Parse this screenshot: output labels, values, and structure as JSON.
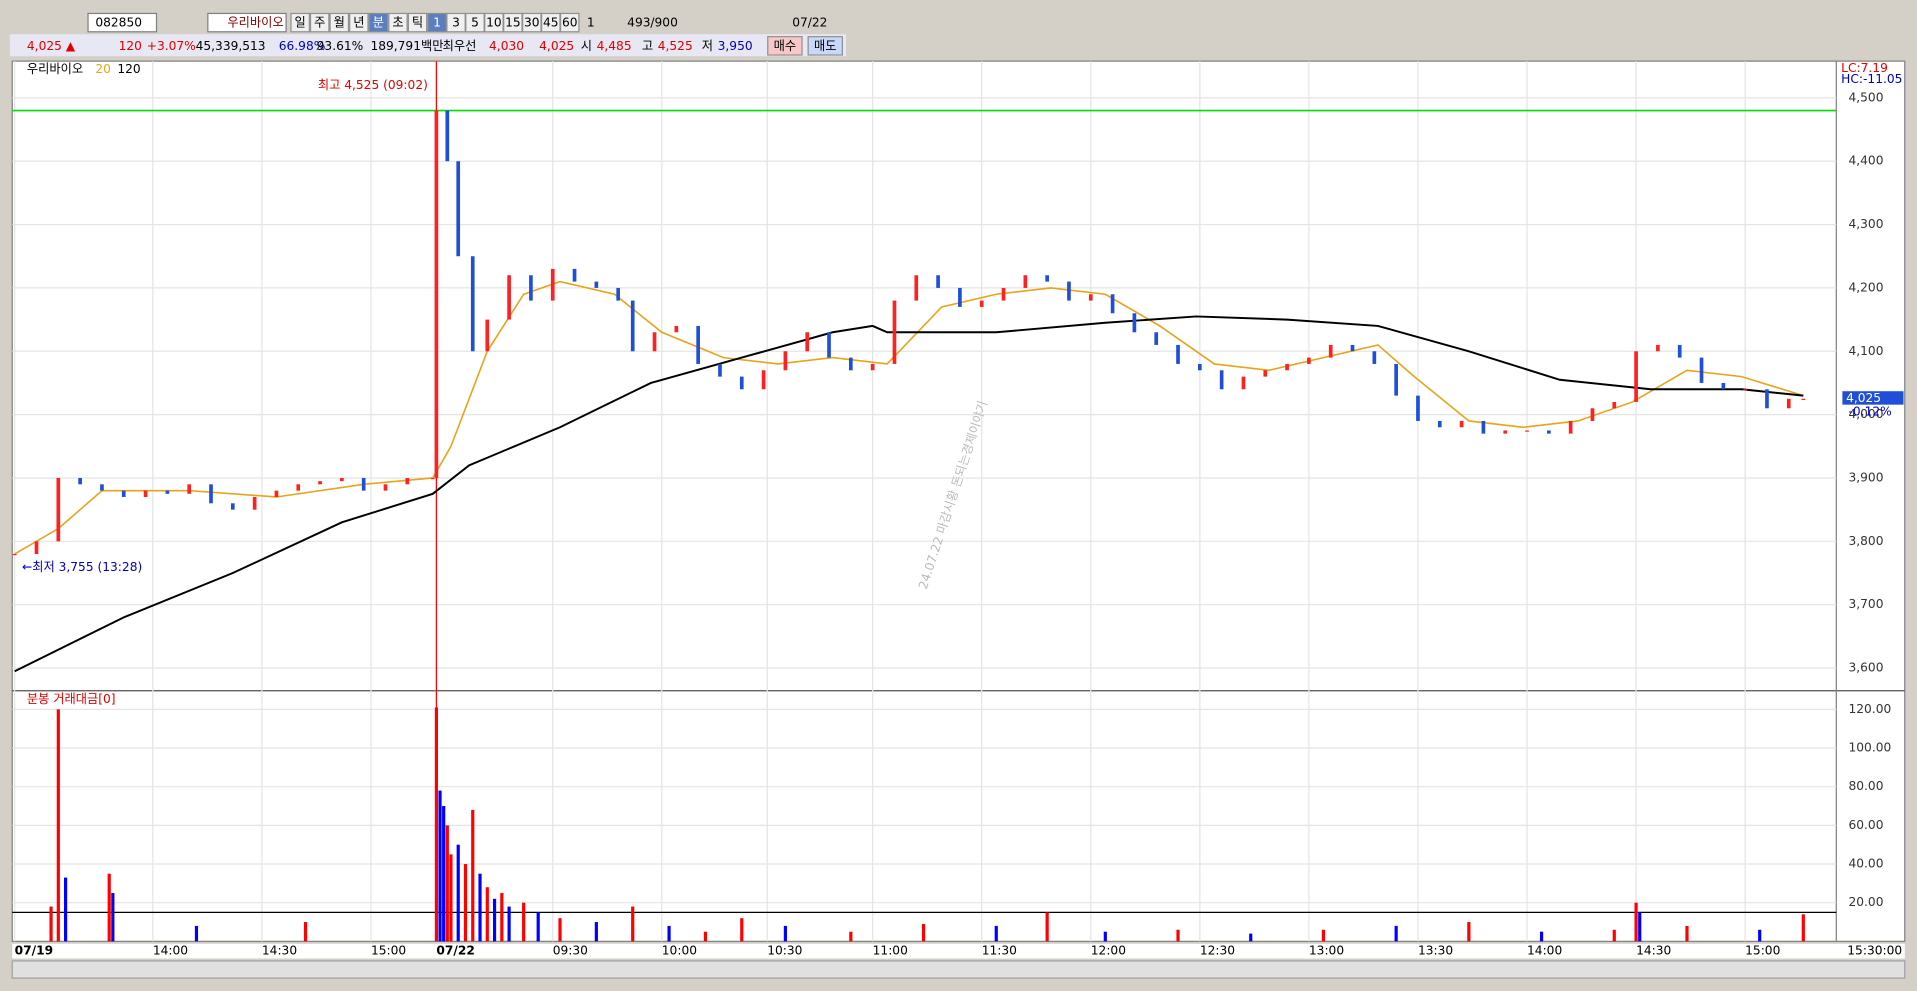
{
  "toolbar": {
    "code": "082850",
    "name": "우리바이오",
    "periods": [
      "일",
      "주",
      "월",
      "년",
      "분",
      "초",
      "틱"
    ],
    "minutes": [
      "1",
      "3",
      "5",
      "10",
      "15",
      "30",
      "45",
      "60"
    ],
    "count": "1",
    "bars": "493",
    "max": "/900",
    "date": "07/22"
  },
  "quote": {
    "price": "4,025 ▲",
    "change": "120",
    "rate": "+3.07%",
    "volume": "45,339,513",
    "ratio1": "66.98%",
    "ratio2": "93.61%",
    "amount": "189,791백만",
    "best_label": "최우선",
    "ask": "4,030",
    "bid": "4,025",
    "open_label": "시",
    "open": "4,485",
    "high_label": "고",
    "high": "4,525",
    "low_label": "저",
    "low": "3,950",
    "buy": "매수",
    "sell": "매도"
  },
  "chart_data": [
    {
      "type": "candle",
      "legend": [
        "우리바이오",
        "20",
        "120"
      ],
      "high_note": "최고 4,525 (09:02)",
      "low_note": "←최저 3,755 (13:28)",
      "lc": "LC:7.19",
      "hc": "HC:-11.05",
      "last": "4,025",
      "last_rate": "-0.12%",
      "watermark": "24.07.22 마감시황 돈되는경제이야기",
      "day_high": 4480,
      "xlim": [
        0,
        493
      ],
      "ylim": [
        3568,
        4558
      ],
      "yticks": [
        {
          "value": 4500,
          "label": "4,500"
        },
        {
          "value": 4400,
          "label": "4,400"
        },
        {
          "value": 4300,
          "label": "4,300"
        },
        {
          "value": 4200,
          "label": "4,200"
        },
        {
          "value": 4100,
          "label": "4,100"
        },
        {
          "value": 4000,
          "label": "4,000"
        },
        {
          "value": 3900,
          "label": "3,900"
        },
        {
          "value": 3800,
          "label": "3,800"
        },
        {
          "value": 3700,
          "label": "3,700"
        },
        {
          "value": 3600,
          "label": "3,600"
        }
      ],
      "xticks": [
        {
          "value": 0,
          "label": "07/19"
        },
        {
          "value": 38,
          "label": "14:00"
        },
        {
          "value": 68,
          "label": "14:30"
        },
        {
          "value": 98,
          "label": "15:00"
        },
        {
          "value": 116,
          "label": "07/22"
        },
        {
          "value": 148,
          "label": "09:30"
        },
        {
          "value": 178,
          "label": "10:00"
        },
        {
          "value": 207,
          "label": "10:30"
        },
        {
          "value": 236,
          "label": "11:00"
        },
        {
          "value": 266,
          "label": "11:30"
        },
        {
          "value": 296,
          "label": "12:00"
        },
        {
          "value": 326,
          "label": "12:30"
        },
        {
          "value": 356,
          "label": "13:00"
        },
        {
          "value": 386,
          "label": "13:30"
        },
        {
          "value": 416,
          "label": "14:00"
        },
        {
          "value": 446,
          "label": "14:30"
        },
        {
          "value": 476,
          "label": "15:00"
        }
      ],
      "end_time": "15:30:00",
      "x": [
        0,
        6,
        12,
        18,
        24,
        30,
        36,
        42,
        48,
        54,
        60,
        66,
        72,
        78,
        84,
        90,
        96,
        102,
        108,
        115,
        116,
        119,
        122,
        126,
        130,
        136,
        142,
        148,
        154,
        160,
        166,
        170,
        176,
        182,
        188,
        194,
        200,
        206,
        212,
        218,
        224,
        230,
        236,
        242,
        248,
        254,
        260,
        266,
        272,
        278,
        284,
        290,
        296,
        302,
        308,
        314,
        320,
        326,
        332,
        338,
        344,
        350,
        356,
        362,
        368,
        374,
        380,
        386,
        392,
        398,
        404,
        410,
        416,
        422,
        428,
        434,
        440,
        446,
        452,
        458,
        464,
        470,
        476,
        482,
        488,
        492
      ],
      "series": [
        {
          "name": "close",
          "color": "#1f4fd8",
          "values": [
            3780,
            3800,
            3900,
            3890,
            3880,
            3870,
            3880,
            3875,
            3890,
            3860,
            3850,
            3870,
            3880,
            3890,
            3895,
            3900,
            3880,
            3890,
            3900,
            3900,
            4480,
            4400,
            4250,
            4100,
            4150,
            4220,
            4180,
            4230,
            4210,
            4200,
            4180,
            4100,
            4130,
            4140,
            4080,
            4060,
            4040,
            4070,
            4100,
            4130,
            4090,
            4070,
            4080,
            4180,
            4220,
            4200,
            4170,
            4180,
            4200,
            4220,
            4210,
            4180,
            4190,
            4160,
            4130,
            4110,
            4080,
            4070,
            4040,
            4060,
            4070,
            4080,
            4090,
            4110,
            4100,
            4080,
            4030,
            3990,
            3980,
            3990,
            3970,
            3975,
            3975,
            3970,
            3990,
            4010,
            4020,
            4100,
            4110,
            4090,
            4050,
            4040,
            4040,
            4010,
            4025,
            4025
          ]
        }
      ],
      "ma": [
        {
          "name": "20",
          "color": "#e8a317",
          "x": [
            0,
            12,
            24,
            48,
            72,
            96,
            115,
            120,
            130,
            140,
            150,
            165,
            178,
            195,
            210,
            225,
            240,
            255,
            270,
            285,
            300,
            315,
            330,
            345,
            360,
            375,
            385,
            400,
            415,
            430,
            445,
            460,
            475,
            492
          ],
          "values": [
            3780,
            3820,
            3880,
            3880,
            3870,
            3890,
            3900,
            3950,
            4100,
            4190,
            4210,
            4190,
            4130,
            4090,
            4080,
            4090,
            4080,
            4170,
            4190,
            4200,
            4190,
            4140,
            4080,
            4070,
            4090,
            4110,
            4060,
            3990,
            3980,
            3990,
            4020,
            4070,
            4060,
            4030
          ]
        },
        {
          "name": "120",
          "color": "#000000",
          "x": [
            0,
            30,
            60,
            90,
            115,
            125,
            150,
            175,
            200,
            225,
            236,
            240,
            270,
            300,
            325,
            350,
            375,
            400,
            425,
            450,
            475,
            492
          ],
          "values": [
            3595,
            3680,
            3750,
            3830,
            3875,
            3920,
            3980,
            4050,
            4090,
            4130,
            4140,
            4130,
            4130,
            4145,
            4155,
            4150,
            4140,
            4100,
            4055,
            4040,
            4040,
            4030
          ]
        }
      ]
    },
    {
      "type": "bar",
      "title": "분봉 거래대금[0]",
      "xlim": [
        0,
        493
      ],
      "ylim": [
        0,
        129
      ],
      "yticks": [
        {
          "value": 120,
          "label": "120.00"
        },
        {
          "value": 100,
          "label": "100.00"
        },
        {
          "value": 80,
          "label": "80.00"
        },
        {
          "value": 60,
          "label": "60.00"
        },
        {
          "value": 40,
          "label": "40.00"
        },
        {
          "value": 20,
          "label": "20.00"
        }
      ],
      "ref_line": 15,
      "x": [
        10,
        12,
        14,
        26,
        27,
        50,
        80,
        116,
        117,
        118,
        119,
        120,
        122,
        124,
        126,
        128,
        130,
        132,
        134,
        136,
        140,
        144,
        150,
        160,
        170,
        180,
        190,
        200,
        212,
        230,
        250,
        270,
        284,
        300,
        320,
        340,
        360,
        380,
        400,
        420,
        440,
        446,
        447,
        460,
        480,
        492
      ],
      "values": [
        18,
        120,
        33,
        35,
        25,
        8,
        10,
        121,
        78,
        70,
        60,
        45,
        50,
        40,
        68,
        35,
        28,
        22,
        25,
        18,
        20,
        15,
        12,
        10,
        18,
        8,
        5,
        12,
        8,
        5,
        9,
        8,
        15,
        5,
        6,
        4,
        6,
        8,
        10,
        5,
        6,
        20,
        15,
        8,
        6,
        14
      ],
      "colors": [
        "#ff0000",
        "#ff0000",
        "#0000ff",
        "#ff0000",
        "#0000ff",
        "#0000ff",
        "#ff0000",
        "#ff0000",
        "#0000ff",
        "#0000ff",
        "#ff0000",
        "#ff0000",
        "#0000ff",
        "#ff0000",
        "#ff0000",
        "#0000ff",
        "#ff0000",
        "#0000ff",
        "#ff0000",
        "#0000ff",
        "#ff0000",
        "#0000ff",
        "#ff0000",
        "#0000ff",
        "#ff0000",
        "#0000ff",
        "#ff0000",
        "#ff0000",
        "#0000ff",
        "#ff0000",
        "#ff0000",
        "#0000ff",
        "#ff0000",
        "#0000ff",
        "#ff0000",
        "#0000ff",
        "#ff0000",
        "#0000ff",
        "#ff0000",
        "#0000ff",
        "#ff0000",
        "#ff0000",
        "#0000ff",
        "#ff0000",
        "#0000ff",
        "#ff0000"
      ]
    }
  ]
}
